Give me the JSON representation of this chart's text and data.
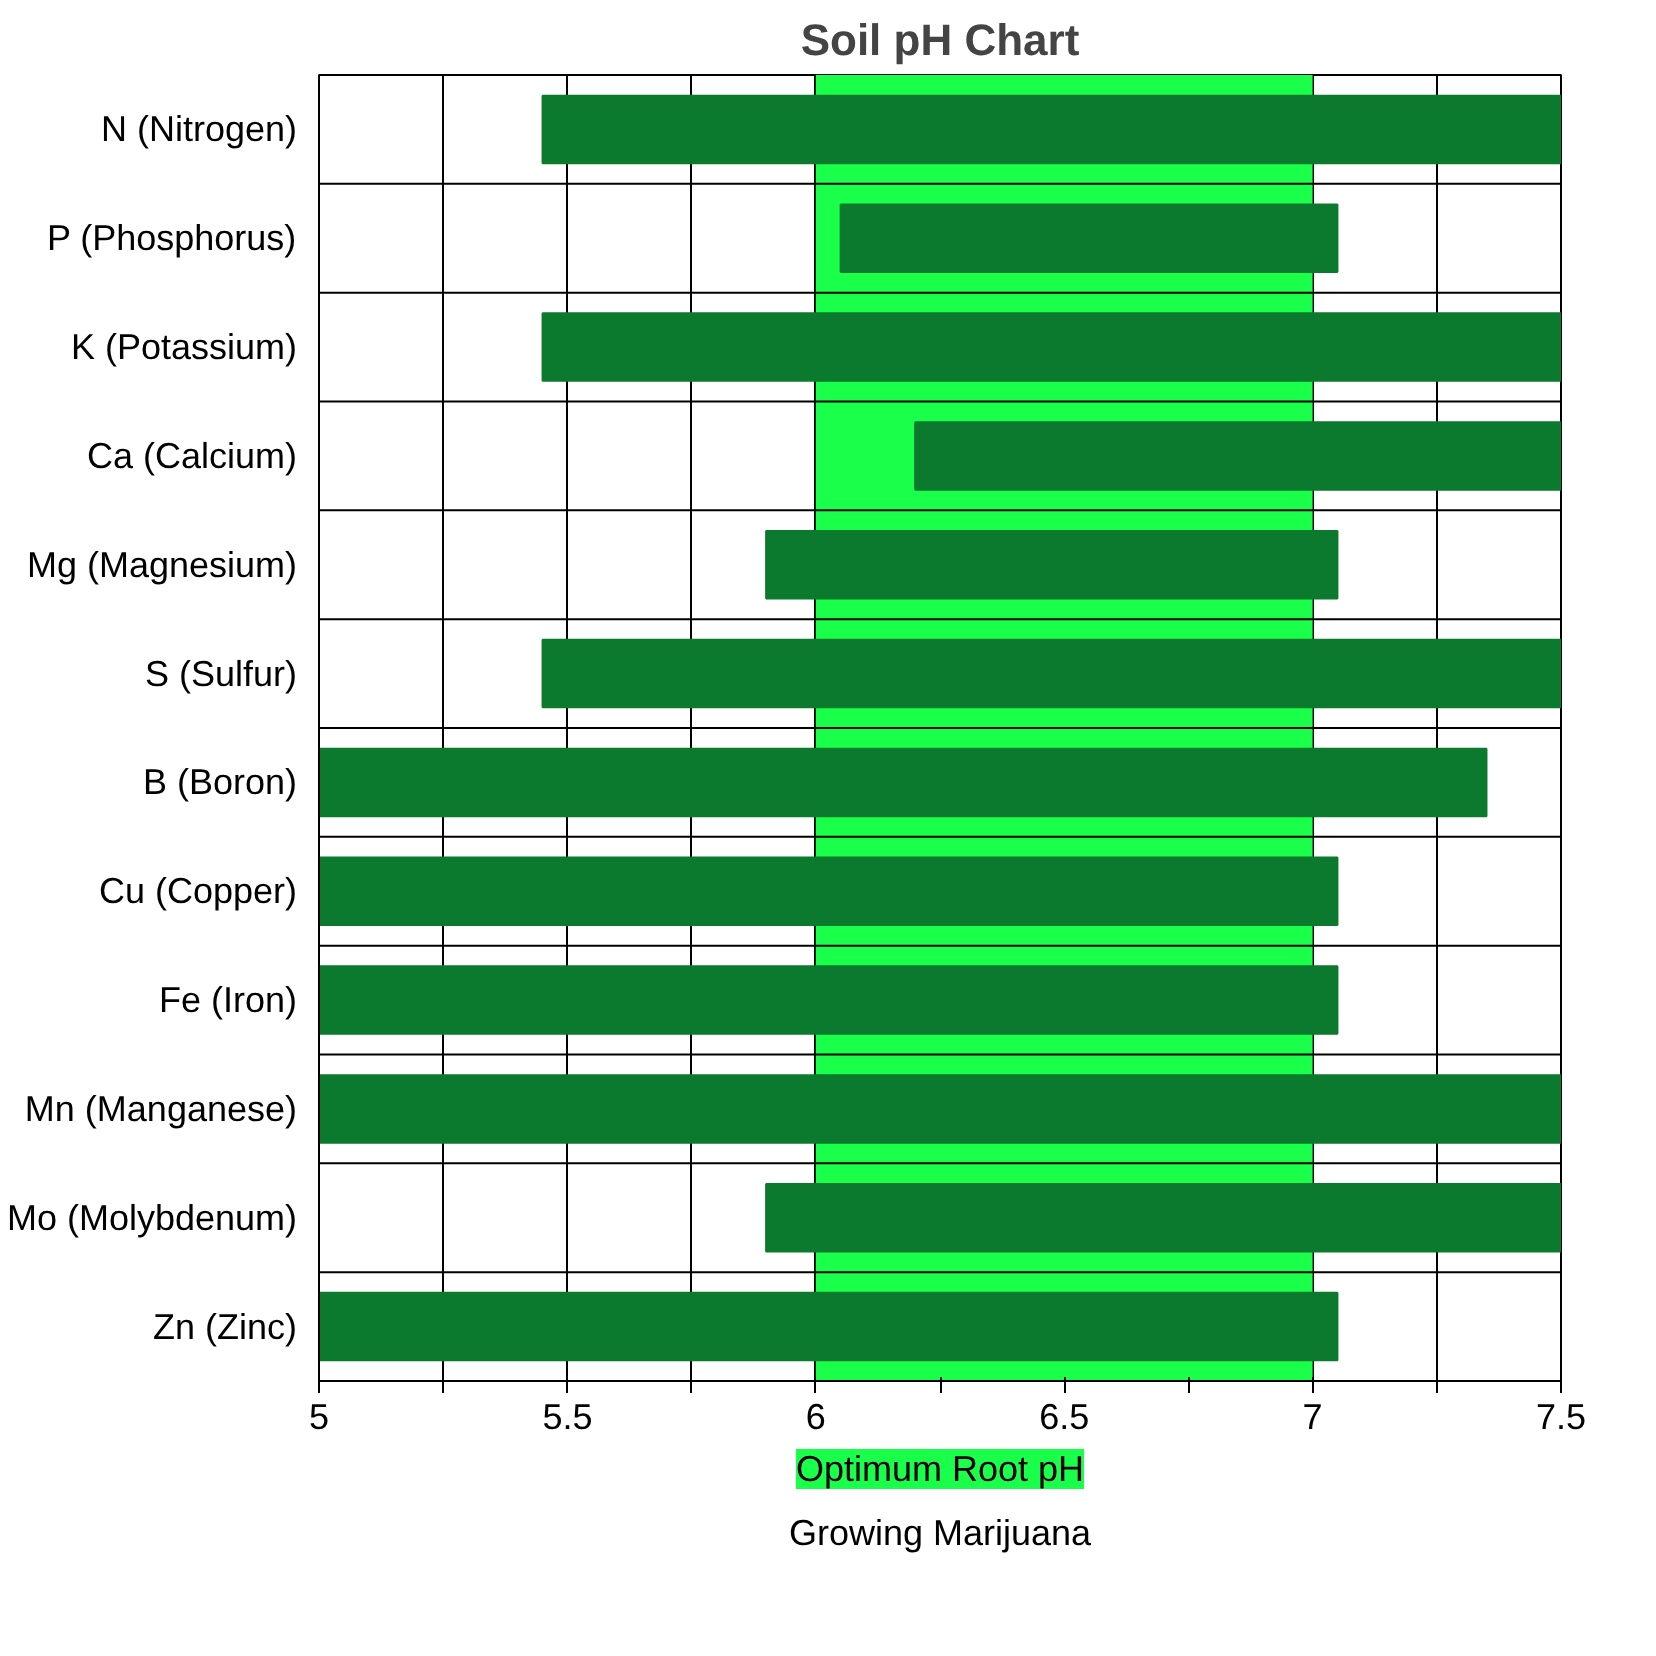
{
  "chart_data": {
    "type": "bar",
    "orientation": "horizontal",
    "title": "Soil pH Chart",
    "categories": [
      "N (Nitrogen)",
      "P (Phosphorus)",
      "K (Potassium)",
      "Ca (Calcium)",
      "Mg (Magnesium)",
      "S (Sulfur)",
      "B (Boron)",
      "Cu (Copper)",
      "Fe (Iron)",
      "Mn (Manganese)",
      "Mo (Molybdenum)",
      "Zn (Zinc)"
    ],
    "base": [
      5.45,
      6.05,
      5.45,
      6.2,
      5.9,
      5.45,
      5.0,
      5.0,
      5.0,
      5.0,
      5.9,
      5.0
    ],
    "values": [
      2.05,
      1.0,
      2.05,
      1.3,
      1.15,
      2.05,
      2.35,
      2.05,
      2.05,
      2.5,
      1.6,
      2.05
    ],
    "color": "#0c7a2e",
    "xlim": [
      5,
      7.5
    ],
    "xticks": [
      5,
      {
        "value": 5.25,
        "label": null
      },
      5.5,
      {
        "value": 5.75,
        "label": null
      },
      6,
      {
        "value": 6.25,
        "label": null
      },
      6.5,
      {
        "value": 6.75,
        "label": null
      },
      7,
      {
        "value": 7.25,
        "label": null
      },
      7.5
    ],
    "grid": true,
    "bands": [
      {
        "axis": "x",
        "from": 6,
        "to": 7,
        "label": "Optimum Root pH",
        "color": "#1aff4a"
      }
    ],
    "annotations": [
      "Growing Marijuana"
    ]
  }
}
